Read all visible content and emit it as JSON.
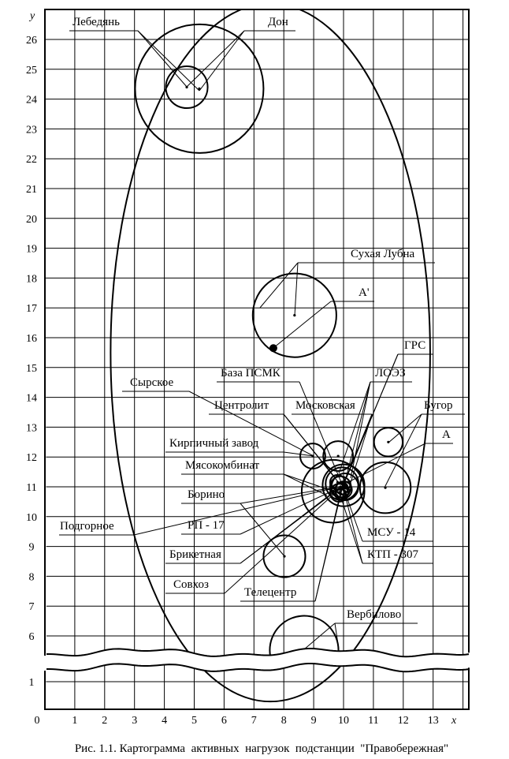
{
  "caption": "Рис. 1.1. Картограмма  активных  нагрузок  подстанции  \"Правобережная\"",
  "axes": {
    "x_label": "x",
    "y_label": "y",
    "x_ticks": [
      "0",
      "1",
      "2",
      "3",
      "4",
      "5",
      "6",
      "7",
      "8",
      "9",
      "10",
      "11",
      "12",
      "13"
    ],
    "y_ticks_upper": [
      "6",
      "7",
      "8",
      "9",
      "10",
      "11",
      "12",
      "13",
      "14",
      "15",
      "16",
      "17",
      "18",
      "19",
      "20",
      "21",
      "22",
      "23",
      "24",
      "25",
      "26"
    ],
    "y_ticks_lower": [
      "1"
    ],
    "y_break": [
      1.5,
      5.5
    ]
  },
  "labels": [
    "Лебедянь",
    "Дон",
    "Сухая Лубна",
    "А'",
    "ГРС",
    "ЛОЭЗ",
    "База ПСМК",
    "Сырское",
    "Центролит",
    "Московская",
    "Бугор",
    "А",
    "Кирпичный завод",
    "Мясокомбинат",
    "Борино",
    "Подгорное",
    "РП - 17",
    "МСУ - 14",
    "Брикетная",
    "КТП - 307",
    "Совхоз",
    "Телецентр",
    "Вербилово"
  ],
  "loads": [
    {
      "name": "Лебедянь",
      "x": 4.75,
      "y": 24.4,
      "r": 0.7
    },
    {
      "name": "Дон",
      "x": 5.17,
      "y": 24.35,
      "r": 2.15
    },
    {
      "name": "Сухая Лубна",
      "x": 8.36,
      "y": 16.75,
      "r": 1.4
    },
    {
      "name": "Бугор",
      "x": 11.5,
      "y": 12.5,
      "r": 0.48
    },
    {
      "name": "ГРС",
      "x": 11.4,
      "y": 10.97,
      "r": 0.85
    },
    {
      "name": "Кирпичный завод",
      "x": 8.97,
      "y": 12.03,
      "r": 0.42
    },
    {
      "name": "Московская",
      "x": 9.82,
      "y": 12.03,
      "r": 0.5
    },
    {
      "name": "Мясокомбинат",
      "x": 9.65,
      "y": 10.85,
      "r": 1.05
    },
    {
      "name": "Центролит",
      "x": 10.0,
      "y": 11.05,
      "r": 0.7
    },
    {
      "name": "База ПСМК",
      "x": 9.95,
      "y": 11.1,
      "r": 0.55
    },
    {
      "name": "Сырское",
      "x": 10.05,
      "y": 11.0,
      "r": 0.45
    },
    {
      "name": "ЛОЭЗ",
      "x": 9.9,
      "y": 11.0,
      "r": 0.35
    },
    {
      "name": "МСУ - 14",
      "x": 10.0,
      "y": 10.9,
      "r": 0.28
    },
    {
      "name": "КТП - 307",
      "x": 9.95,
      "y": 10.95,
      "r": 0.2
    },
    {
      "name": "РП - 17",
      "x": 9.85,
      "y": 10.8,
      "r": 0.3
    },
    {
      "name": "Подгорное",
      "x": 9.8,
      "y": 11.15,
      "r": 0.25
    },
    {
      "name": "Телецентр",
      "x": 9.9,
      "y": 10.75,
      "r": 0.18
    },
    {
      "name": "Совхоз",
      "x": 10.05,
      "y": 10.85,
      "r": 0.15
    },
    {
      "name": "Брикетная",
      "x": 10.1,
      "y": 11.05,
      "r": 0.12
    },
    {
      "name": "Борино",
      "x": 8.02,
      "y": 8.67,
      "r": 0.7
    },
    {
      "name": "Вербилово",
      "x": 8.68,
      "y": 5.52,
      "r": 1.15
    }
  ],
  "center_point": {
    "name": "А'",
    "x": 7.65,
    "y": 15.65
  },
  "zone_ellipse": {
    "cx": 7.55,
    "cy": 15.5,
    "rx": 5.35,
    "ry": 11.7
  }
}
